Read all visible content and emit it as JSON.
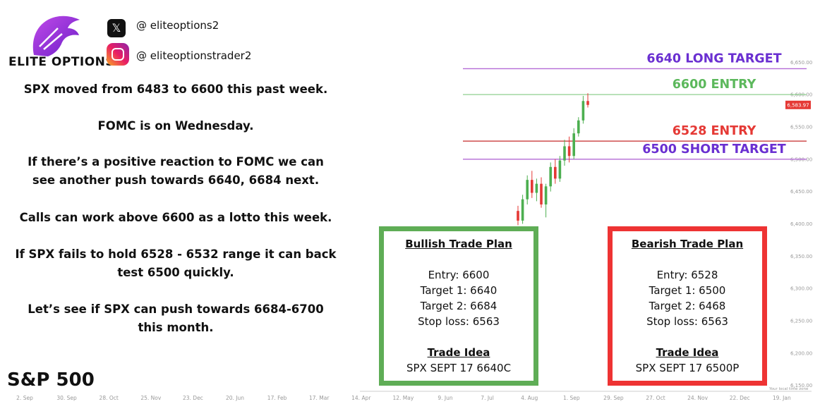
{
  "header": {
    "brand": "ELITE OPTIONS",
    "twitter": "@ eliteoptions2",
    "instagram": "@ eliteoptionstrader2"
  },
  "commentary": [
    "SPX moved from 6483 to 6600 this past week.",
    "FOMC is on Wednesday.",
    "If there’s a positive reaction to FOMC we can see another push towards 6640, 6684 next.",
    "Calls can work above 6600 as a lotto this week.",
    "If SPX fails to hold 6528 - 6532 range it can back test 6500 quickly.",
    "Let’s see if SPX can push towards 6684-6700 this month."
  ],
  "index_label": "S&P 500",
  "chart_data": {
    "type": "candlestick",
    "ylim": [
      6141,
      6659
    ],
    "yticks": [
      {
        "value": 6650,
        "label": "6,650.00"
      },
      {
        "value": 6600,
        "label": "6,600.00"
      },
      {
        "value": 6550,
        "label": "6,550.00"
      },
      {
        "value": 6500,
        "label": "6,500.00"
      },
      {
        "value": 6450,
        "label": "6,450.00"
      },
      {
        "value": 6400,
        "label": "6,400.00"
      },
      {
        "value": 6350,
        "label": "6,350.00"
      },
      {
        "value": 6300,
        "label": "6,300.00"
      },
      {
        "value": 6250,
        "label": "6,250.00"
      },
      {
        "value": 6200,
        "label": "6,200.00"
      },
      {
        "value": 6150,
        "label": "6,150.00"
      }
    ],
    "xtick_labels": [
      "2. Sep",
      "30. Sep",
      "28. Oct",
      "25. Nov",
      "23. Dec",
      "20. Jun",
      "17. Feb",
      "17. Mar",
      "14. Apr",
      "12. May",
      "9. Jun",
      "7. Jul",
      "4. Aug",
      "1. Sep",
      "29. Sep",
      "27. Oct",
      "24. Nov",
      "22. Dec",
      "19. Jan"
    ],
    "open": [
      6420,
      6405,
      6438,
      6468,
      6448,
      6462,
      6430,
      6458,
      6488,
      6470,
      6498,
      6520,
      6505,
      6540,
      6560,
      6590
    ],
    "high": [
      6428,
      6445,
      6475,
      6482,
      6470,
      6472,
      6462,
      6495,
      6500,
      6505,
      6530,
      6535,
      6548,
      6565,
      6598,
      6602
    ],
    "low": [
      6398,
      6400,
      6430,
      6440,
      6435,
      6425,
      6410,
      6450,
      6462,
      6465,
      6490,
      6495,
      6500,
      6535,
      6555,
      6580
    ],
    "close": [
      6405,
      6438,
      6468,
      6448,
      6462,
      6430,
      6458,
      6488,
      6470,
      6498,
      6520,
      6505,
      6540,
      6560,
      6590,
      6584
    ],
    "up_color": "#4caf50",
    "down_color": "#e53935",
    "levels": [
      {
        "value": 6640,
        "label": "6640 LONG TARGET",
        "color": "#6a2fd1",
        "line_color": "#b36ad6"
      },
      {
        "value": 6600,
        "label": "6600 ENTRY",
        "color": "#5cb85c",
        "line_color": "#8fcf8f"
      },
      {
        "value": 6528,
        "label": "6528 ENTRY",
        "color": "#e53935",
        "line_color": "#c62828"
      },
      {
        "value": 6500,
        "label": "6500 SHORT TARGET",
        "color": "#6a2fd1",
        "line_color": "#b36ad6"
      }
    ],
    "last_price": {
      "value": 6583.97,
      "label": "6,583.97"
    },
    "timezone_note": "Your local time zone"
  },
  "plans": [
    {
      "title": "Bullish Trade Plan",
      "lines": [
        "Entry: 6600",
        "Target 1: 6640",
        "Target 2: 6684",
        "Stop loss: 6563"
      ],
      "idea_title": "Trade Idea",
      "idea": "SPX SEPT 17  6640C",
      "border": "#5fad56"
    },
    {
      "title": "Bearish Trade Plan",
      "lines": [
        "Entry: 6528",
        "Target 1: 6500",
        "Target 2: 6468",
        "Stop loss: 6563"
      ],
      "idea_title": "Trade Idea",
      "idea": "SPX SEPT 17 6500P",
      "border": "#ee3333"
    }
  ]
}
